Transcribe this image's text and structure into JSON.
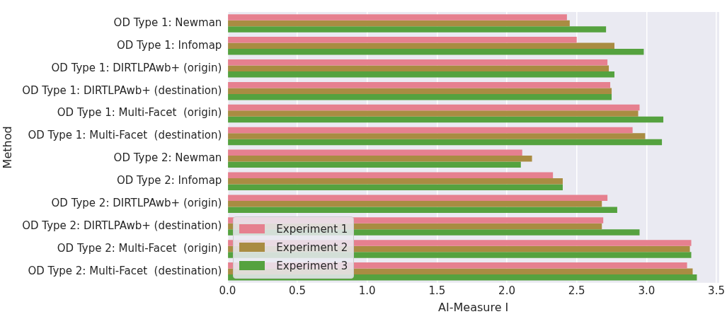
{
  "chart_data": {
    "type": "bar",
    "orientation": "horizontal",
    "xlabel": "AI-Measure I",
    "ylabel": "Method",
    "categories": [
      "OD Type 1: Newman",
      "OD Type 1: Infomap",
      "OD Type 1: DIRTLPAwb+ (origin)",
      "OD Type 1: DIRTLPAwb+ (destination)",
      "OD Type 1: Multi-Facet  (origin)",
      "OD Type 1: Multi-Facet  (destination)",
      "OD Type 2: Newman",
      "OD Type 2: Infomap",
      "OD Type 2: DIRTLPAwb+ (origin)",
      "OD Type 2: DIRTLPAwb+ (destination)",
      "OD Type 2: Multi-Facet  (origin)",
      "OD Type 2: Multi-Facet  (destination)"
    ],
    "series": [
      {
        "name": "Experiment 1",
        "color": "#e6808f",
        "values": [
          2.43,
          2.5,
          2.72,
          2.74,
          2.95,
          2.9,
          2.11,
          2.33,
          2.72,
          2.69,
          3.32,
          3.29
        ]
      },
      {
        "name": "Experiment 2",
        "color": "#a98c42",
        "values": [
          2.45,
          2.77,
          2.73,
          2.75,
          2.94,
          2.99,
          2.18,
          2.4,
          2.68,
          2.68,
          3.31,
          3.33
        ]
      },
      {
        "name": "Experiment 3",
        "color": "#55a23f",
        "values": [
          2.71,
          2.98,
          2.77,
          2.75,
          3.12,
          3.11,
          2.1,
          2.4,
          2.79,
          2.95,
          3.32,
          3.36
        ]
      }
    ],
    "xlim": [
      0,
      3.52
    ],
    "xticks": [
      {
        "value": 0,
        "label": "0.0"
      },
      {
        "value": 0.5,
        "label": "0.5"
      },
      {
        "value": 1,
        "label": "1.0"
      },
      {
        "value": 1.5,
        "label": "1.5"
      },
      {
        "value": 2,
        "label": "2.0"
      },
      {
        "value": 2.5,
        "label": "2.5"
      },
      {
        "value": 3,
        "label": "3.0"
      },
      {
        "value": 3.5,
        "label": "3.5"
      }
    ],
    "grid": "x",
    "legend": "bottom left"
  }
}
